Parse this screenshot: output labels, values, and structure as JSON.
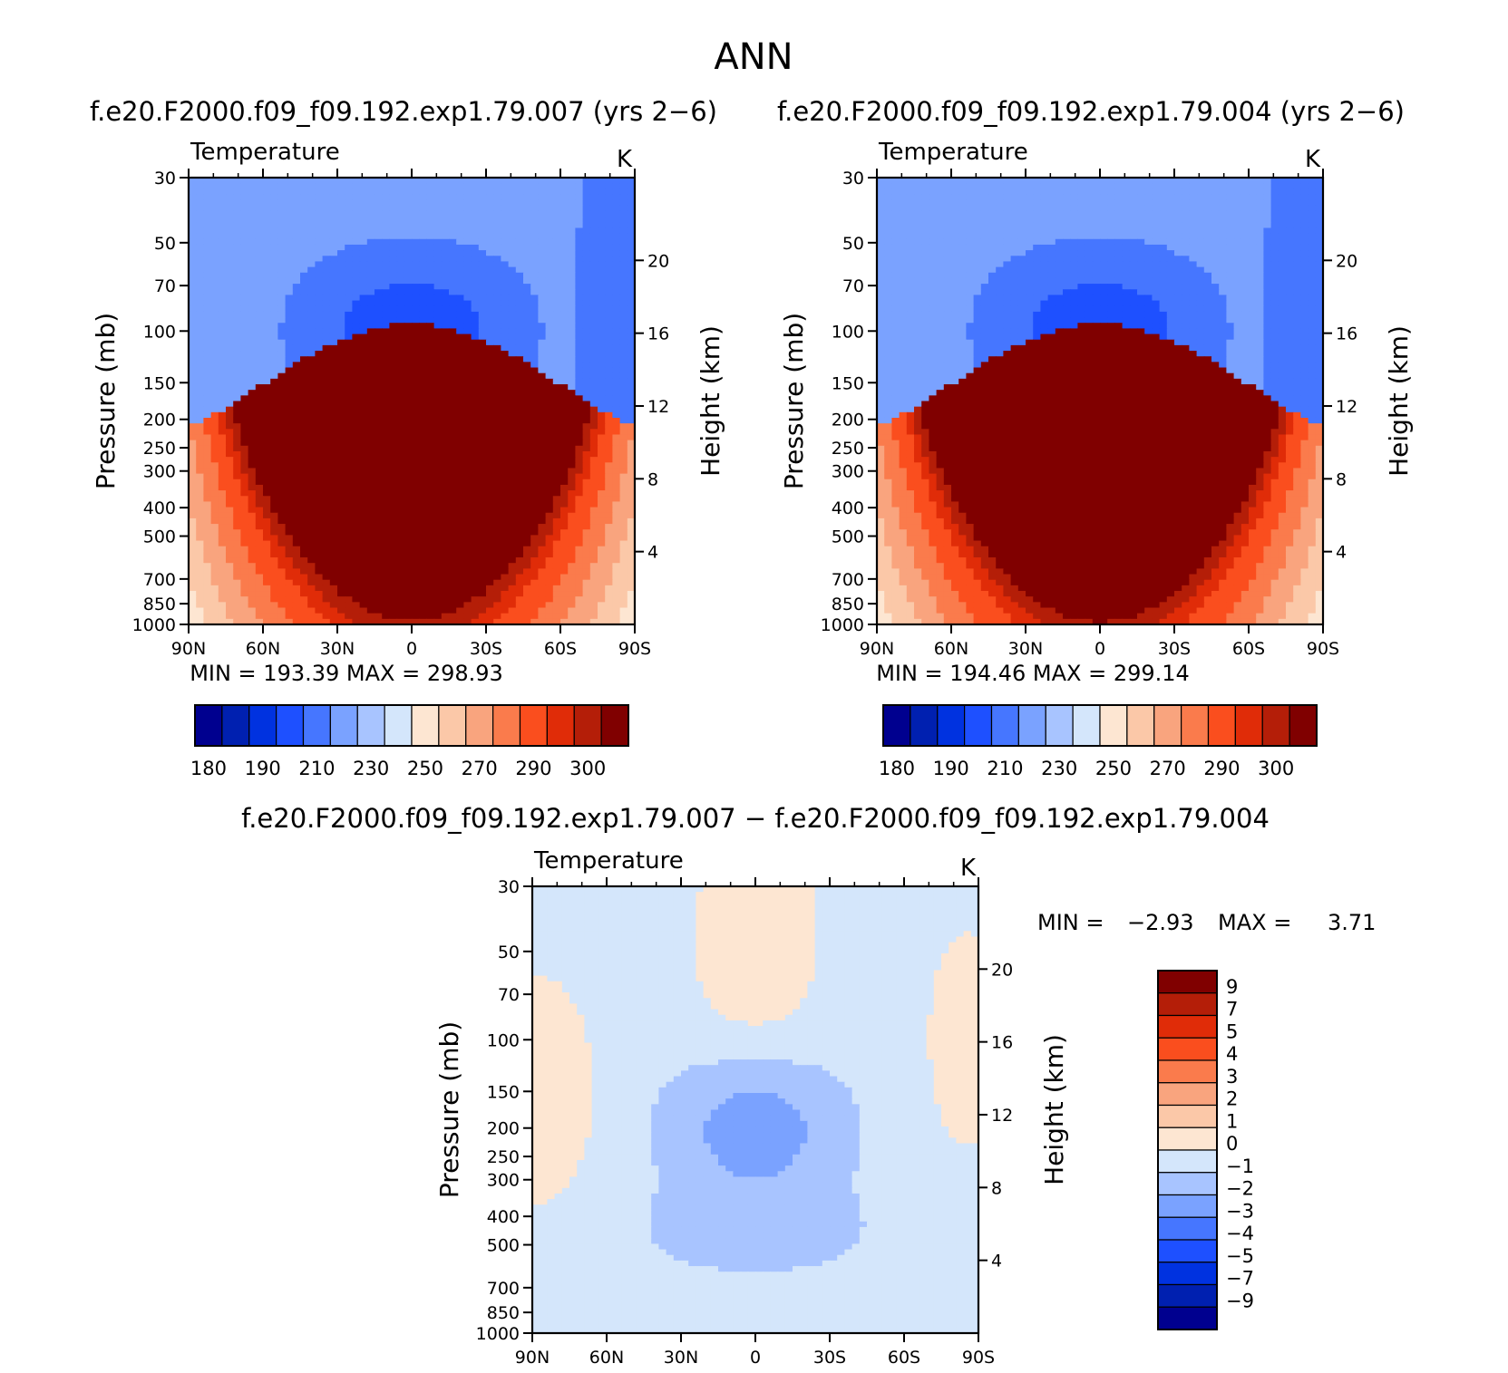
{
  "page_title": "ANN",
  "axis_common": {
    "x_tick_labels": [
      "90N",
      "60N",
      "30N",
      "0",
      "30S",
      "60S",
      "90S"
    ],
    "x_values": [
      -90,
      -60,
      -30,
      0,
      30,
      60,
      90
    ],
    "p_tick_labels": [
      "30",
      "50",
      "70",
      "100",
      "150",
      "200",
      "250",
      "300",
      "400",
      "500",
      "700",
      "850",
      "1000"
    ],
    "p_values": [
      30,
      50,
      70,
      100,
      150,
      200,
      250,
      300,
      400,
      500,
      700,
      850,
      1000
    ],
    "h_tick_labels": [
      "20",
      "16",
      "12",
      "8",
      "4"
    ],
    "h_values": [
      20,
      16,
      12,
      8,
      4
    ],
    "ylabel_left": "Pressure (mb)",
    "ylabel_right": "Height (km)",
    "plot_label": "Temperature",
    "units": "K"
  },
  "colors": {
    "abs_levels": [
      "#00008f",
      "#0020b0",
      "#0032e0",
      "#1e50ff",
      "#4676ff",
      "#7aa2ff",
      "#a8c4ff",
      "#d4e6fb",
      "#fde6d2",
      "#fbc8a8",
      "#f9a47e",
      "#fa7b4c",
      "#fa4e1e",
      "#e02c08",
      "#b41e08",
      "#800000"
    ],
    "diff_levels": [
      "#00008f",
      "#0020b0",
      "#0032e0",
      "#1e50ff",
      "#4676ff",
      "#7aa2ff",
      "#a8c4ff",
      "#d4e6fb",
      "#fde6d2",
      "#fbc8a8",
      "#f9a47e",
      "#fa7b4c",
      "#fa4e1e",
      "#e02c08",
      "#b41e08",
      "#800000"
    ]
  },
  "chart_data": [
    {
      "type": "heatmap",
      "id": "left",
      "title": "f.e20.F2000.f09_f09.192.exp1.79.007 (yrs 2−6)",
      "label": "Temperature",
      "units": "K",
      "xlabel": "",
      "ylabel": "Pressure (mb)",
      "ylabel_right": "Height (km)",
      "xlim": [
        -90,
        90
      ],
      "ylim": [
        1000,
        30
      ],
      "min_text": "MIN = 193.39   MAX = 298.93",
      "min": 193.39,
      "max": 298.93,
      "colorbar_tick_labels": [
        "180",
        "190",
        "210",
        "230",
        "250",
        "270",
        "290",
        "300"
      ],
      "colorbar_levels": [
        180,
        185,
        190,
        200,
        210,
        220,
        230,
        240,
        250,
        260,
        270,
        280,
        290,
        295,
        300
      ]
    },
    {
      "type": "heatmap",
      "id": "right",
      "title": "f.e20.F2000.f09_f09.192.exp1.79.004 (yrs 2−6)",
      "label": "Temperature",
      "units": "K",
      "xlabel": "",
      "ylabel": "Pressure (mb)",
      "ylabel_right": "Height (km)",
      "xlim": [
        -90,
        90
      ],
      "ylim": [
        1000,
        30
      ],
      "min_text": "MIN = 194.46   MAX = 299.14",
      "min": 194.46,
      "max": 299.14,
      "colorbar_tick_labels": [
        "180",
        "190",
        "210",
        "230",
        "250",
        "270",
        "290",
        "300"
      ],
      "colorbar_levels": [
        180,
        185,
        190,
        200,
        210,
        220,
        230,
        240,
        250,
        260,
        270,
        280,
        290,
        295,
        300
      ]
    },
    {
      "type": "heatmap",
      "id": "diff",
      "title": "f.e20.F2000.f09_f09.192.exp1.79.007 − f.e20.F2000.f09_f09.192.exp1.79.004",
      "label": "Temperature",
      "units": "K",
      "xlabel": "",
      "ylabel": "Pressure (mb)",
      "ylabel_right": "Height (km)",
      "xlim": [
        -90,
        90
      ],
      "ylim": [
        1000,
        30
      ],
      "min_label": "MIN =",
      "min_value": "−2.93",
      "max_label": "MAX =",
      "max_value": "3.71",
      "min": -2.93,
      "max": 3.71,
      "colorbar_tick_labels": [
        "9",
        "7",
        "5",
        "4",
        "3",
        "2",
        "1",
        "0",
        "−1",
        "−2",
        "−3",
        "−4",
        "−5",
        "−7",
        "−9"
      ],
      "colorbar_levels": [
        9,
        7,
        5,
        4,
        3,
        2,
        1,
        0,
        -1,
        -2,
        -3,
        -4,
        -5,
        -7,
        -9
      ]
    }
  ]
}
